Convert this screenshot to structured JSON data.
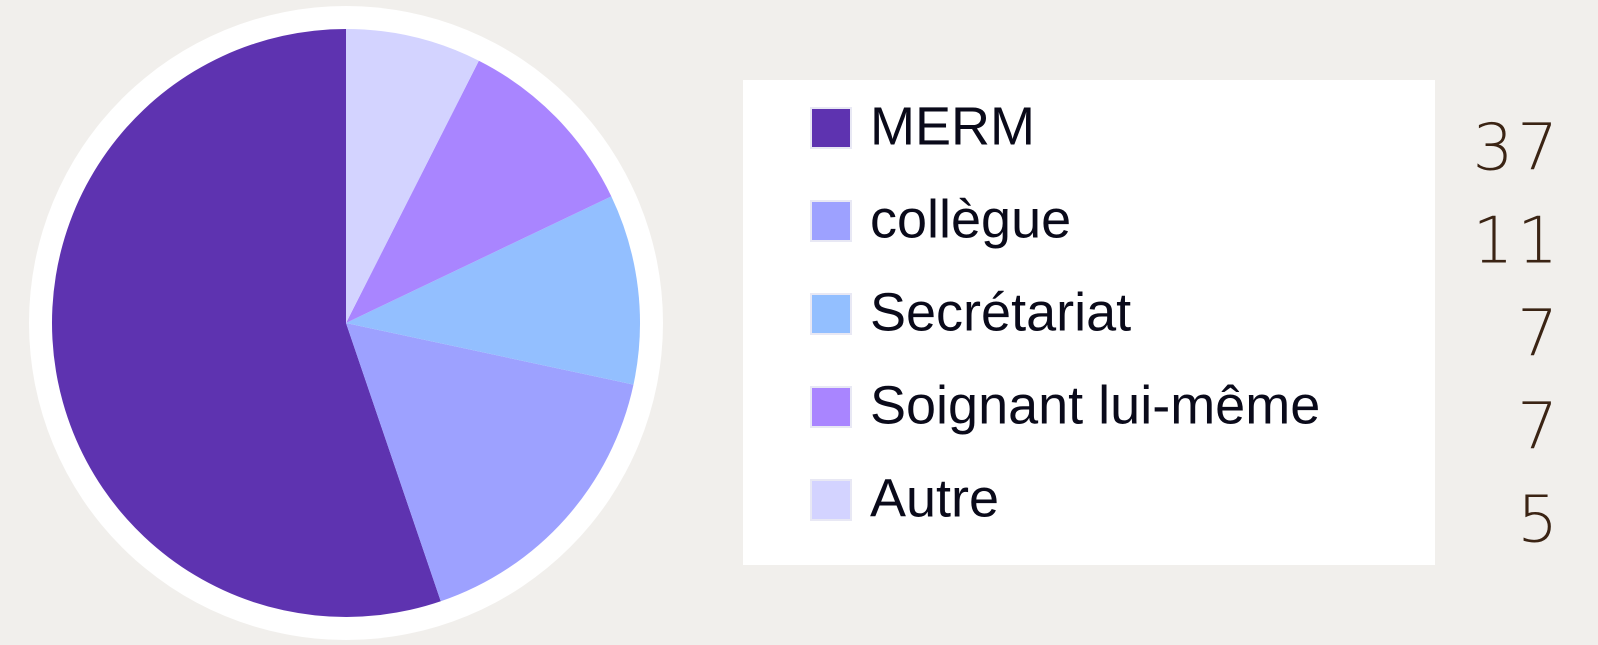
{
  "chart_data": {
    "type": "pie",
    "categories": [
      "MERM",
      "collègue",
      "Secrétariat",
      "Soignant lui-même",
      "Autre"
    ],
    "values": [
      37,
      11,
      7,
      7,
      5
    ],
    "colors": [
      "#5e33b0",
      "#9da1ff",
      "#93bfff",
      "#a985ff",
      "#d3d3ff"
    ]
  }
}
